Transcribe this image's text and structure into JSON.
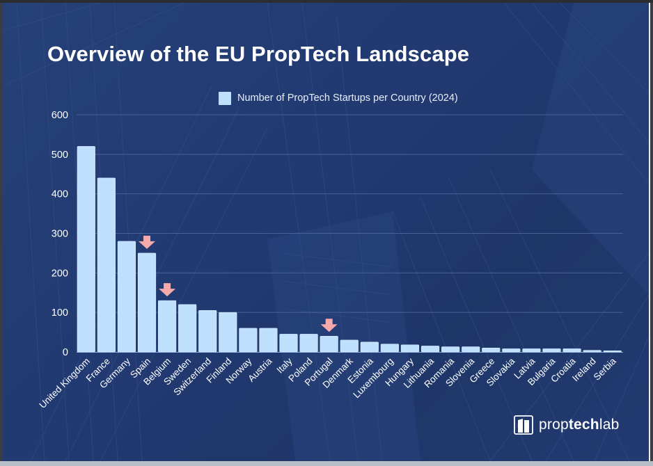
{
  "title": "Overview of the EU PropTech Landscape",
  "legend": {
    "label": "Number of PropTech Startups per Country (2024)",
    "color": "#bfe0fd"
  },
  "logo": {
    "prefix": "prop",
    "bold": "tech",
    "suffix": "lab"
  },
  "colors": {
    "background": "#223a72",
    "bar": "#bfe0fd",
    "bar_edge": "#dcecff",
    "arrow": "#f6a9aa",
    "grid": "#5a73a8",
    "text": "#ffffff"
  },
  "chart_data": {
    "type": "bar",
    "title": "Overview of the EU PropTech Landscape",
    "xlabel": "",
    "ylabel": "",
    "ylim": [
      0,
      600
    ],
    "yticks": [
      0,
      100,
      200,
      300,
      400,
      500,
      600
    ],
    "grid": true,
    "legend_position": "top-center",
    "categories": [
      "United Kingdom",
      "France",
      "Germany",
      "Spain",
      "Belgium",
      "Sweden",
      "Switzerland",
      "Finland",
      "Norway",
      "Austria",
      "Italy",
      "Poland",
      "Portugal",
      "Denmark",
      "Estonia",
      "Luxembourg",
      "Hungary",
      "Lithuania",
      "Romania",
      "Slovenia",
      "Greece",
      "Slovakia",
      "Latvia",
      "Bulgaria",
      "Croatia",
      "Ireland",
      "Serbia"
    ],
    "series": [
      {
        "name": "Number of PropTech Startups per Country (2024)",
        "values": [
          520,
          440,
          280,
          250,
          130,
          120,
          105,
          100,
          60,
          60,
          45,
          45,
          40,
          30,
          25,
          20,
          18,
          15,
          13,
          13,
          10,
          8,
          8,
          8,
          8,
          4,
          3
        ]
      }
    ],
    "annotations": [
      {
        "type": "down-arrow",
        "category": "Spain"
      },
      {
        "type": "down-arrow",
        "category": "Belgium"
      },
      {
        "type": "down-arrow",
        "category": "Portugal"
      }
    ]
  }
}
